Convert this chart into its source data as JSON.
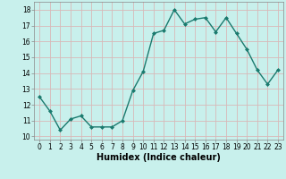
{
  "x": [
    0,
    1,
    2,
    3,
    4,
    5,
    6,
    7,
    8,
    9,
    10,
    11,
    12,
    13,
    14,
    15,
    16,
    17,
    18,
    19,
    20,
    21,
    22,
    23
  ],
  "y": [
    12.5,
    11.6,
    10.4,
    11.1,
    11.3,
    10.6,
    10.6,
    10.6,
    11.0,
    12.9,
    14.1,
    16.5,
    16.7,
    18.0,
    17.1,
    17.4,
    17.5,
    16.6,
    17.5,
    16.5,
    15.5,
    14.2,
    13.3,
    14.2
  ],
  "line_color": "#1a7a6e",
  "marker": "D",
  "marker_size": 2,
  "bg_color": "#c8f0ec",
  "grid_color": "#d8b8b8",
  "xlabel": "Humidex (Indice chaleur)",
  "xlim": [
    -0.5,
    23.5
  ],
  "ylim": [
    9.8,
    18.5
  ],
  "yticks": [
    10,
    11,
    12,
    13,
    14,
    15,
    16,
    17,
    18
  ],
  "xticks": [
    0,
    1,
    2,
    3,
    4,
    5,
    6,
    7,
    8,
    9,
    10,
    11,
    12,
    13,
    14,
    15,
    16,
    17,
    18,
    19,
    20,
    21,
    22,
    23
  ],
  "tick_fontsize": 5.5,
  "xlabel_fontsize": 7,
  "line_width": 1.0
}
